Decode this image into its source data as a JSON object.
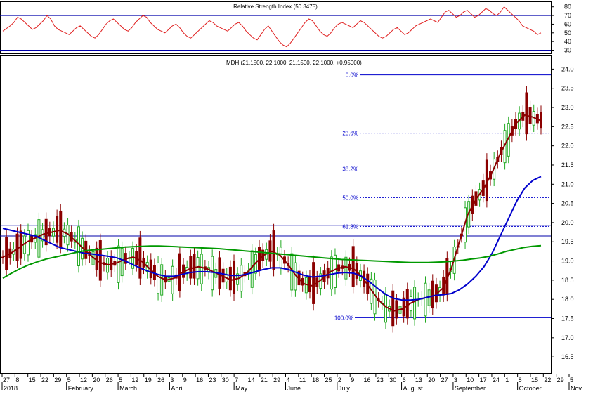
{
  "chart_data": [
    {
      "type": "line",
      "title": "Relative Strength Index (50.3475)",
      "y_ticks": [
        "80",
        "70",
        "60",
        "50",
        "40",
        "30"
      ],
      "ylim": [
        28,
        83
      ],
      "guide_levels": [
        70,
        30
      ],
      "series": [
        {
          "color": "#e02020",
          "values": [
            52,
            55,
            58,
            62,
            68,
            66,
            62,
            58,
            54,
            56,
            60,
            64,
            70,
            66,
            58,
            54,
            52,
            50,
            48,
            52,
            56,
            58,
            54,
            50,
            46,
            44,
            48,
            54,
            60,
            64,
            66,
            62,
            58,
            54,
            52,
            56,
            62,
            66,
            70,
            68,
            62,
            58,
            54,
            52,
            50,
            54,
            58,
            60,
            56,
            50,
            46,
            44,
            48,
            52,
            56,
            60,
            64,
            62,
            58,
            56,
            54,
            52,
            56,
            60,
            62,
            58,
            52,
            48,
            44,
            42,
            48,
            54,
            58,
            52,
            46,
            40,
            36,
            34,
            38,
            44,
            50,
            56,
            62,
            66,
            64,
            58,
            52,
            48,
            46,
            50,
            56,
            60,
            62,
            60,
            58,
            56,
            60,
            64,
            62,
            58,
            54,
            50,
            46,
            44,
            46,
            50,
            54,
            56,
            52,
            48,
            50,
            54,
            58,
            60,
            62,
            64,
            66,
            64,
            62,
            68,
            74,
            76,
            72,
            68,
            70,
            74,
            76,
            72,
            68,
            70,
            74,
            78,
            76,
            72,
            70,
            74,
            80,
            76,
            72,
            68,
            64,
            58,
            56,
            54,
            52,
            48,
            50
          ]
        }
      ]
    },
    {
      "type": "line",
      "title": "MDH (21.1500, 22.1000, 21.1500, 22.1000, +0.95000)",
      "ylim": [
        16.1,
        24.3
      ],
      "y_ticks": [
        24.0,
        23.5,
        23.0,
        22.5,
        22.0,
        21.5,
        21.0,
        20.5,
        20.0,
        19.5,
        19.0,
        18.5,
        18.0,
        17.5,
        17.0,
        16.5
      ],
      "x_ticks": [
        "27",
        "8",
        "15",
        "22",
        "29",
        "5",
        "12",
        "20",
        "26",
        "5",
        "12",
        "19",
        "26",
        "3",
        "9",
        "16",
        "23",
        "30",
        "7",
        "14",
        "21",
        "29",
        "4",
        "11",
        "18",
        "25",
        "2",
        "9",
        "16",
        "23",
        "30",
        "6",
        "13",
        "20",
        "27",
        "3",
        "10",
        "17",
        "24",
        "1",
        "8",
        "15",
        "22",
        "29",
        "5"
      ],
      "month_labels": [
        "2018",
        "February",
        "March",
        "April",
        "May",
        "June",
        "July",
        "August",
        "September",
        "October",
        "Nov"
      ],
      "fib_levels": [
        {
          "label": "0.0%",
          "value": 23.85
        },
        {
          "label": "23.6%",
          "value": 22.33
        },
        {
          "label": "38.2%",
          "value": 21.4
        },
        {
          "label": "50.0%",
          "value": 20.65
        },
        {
          "label": "61.8%",
          "value": 19.9
        },
        {
          "label": "100.0%",
          "value": 17.52
        }
      ],
      "horizontal_lines": [
        19.93,
        19.65
      ],
      "series": [
        {
          "name": "",
          "color": "#8b0000",
          "values": [
            19.1,
            19.2,
            19.35,
            19.5,
            19.6,
            19.7,
            19.75,
            19.8,
            19.7,
            19.5,
            19.3,
            19.1,
            18.95,
            18.9,
            18.95,
            19.05,
            19.1,
            19.0,
            18.8,
            18.6,
            18.5,
            18.55,
            18.7,
            18.8,
            18.85,
            18.8,
            18.7,
            18.6,
            18.5,
            18.55,
            18.7,
            18.95,
            19.15,
            19.25,
            19.15,
            18.9,
            18.6,
            18.4,
            18.35,
            18.5,
            18.7,
            18.8,
            18.85,
            18.8,
            18.6,
            18.3,
            18.0,
            17.8,
            17.7,
            17.75,
            17.9,
            18.0,
            18.05,
            18.1,
            18.3,
            18.8,
            19.5,
            20.2,
            20.6,
            20.9,
            21.3,
            21.8,
            22.2,
            22.6,
            22.8,
            22.75,
            22.65
          ]
        },
        {
          "name": "",
          "color": "#0000cc",
          "values": [
            19.85,
            19.8,
            19.75,
            19.7,
            19.65,
            19.55,
            19.45,
            19.35,
            19.3,
            19.25,
            19.2,
            19.18,
            19.15,
            19.12,
            19.08,
            19.0,
            18.9,
            18.8,
            18.72,
            18.65,
            18.6,
            18.6,
            18.65,
            18.7,
            18.72,
            18.72,
            18.7,
            18.66,
            18.62,
            18.62,
            18.66,
            18.72,
            18.78,
            18.82,
            18.82,
            18.78,
            18.7,
            18.62,
            18.58,
            18.6,
            18.64,
            18.68,
            18.7,
            18.68,
            18.6,
            18.45,
            18.28,
            18.12,
            18.02,
            17.98,
            17.98,
            18.0,
            18.05,
            18.1,
            18.12,
            18.15,
            18.25,
            18.4,
            18.6,
            18.85,
            19.2,
            19.65,
            20.1,
            20.55,
            20.9,
            21.1,
            21.2
          ]
        },
        {
          "name": "",
          "color": "#009900",
          "values": [
            18.55,
            18.68,
            18.8,
            18.9,
            18.98,
            19.05,
            19.1,
            19.15,
            19.2,
            19.25,
            19.28,
            19.3,
            19.32,
            19.34,
            19.36,
            19.37,
            19.38,
            19.39,
            19.39,
            19.38,
            19.37,
            19.36,
            19.35,
            19.34,
            19.33,
            19.32,
            19.3,
            19.28,
            19.26,
            19.24,
            19.22,
            19.2,
            19.18,
            19.16,
            19.14,
            19.12,
            19.1,
            19.08,
            19.06,
            19.04,
            19.03,
            19.02,
            19.01,
            19.0,
            18.99,
            18.98,
            18.97,
            18.96,
            18.96,
            18.96,
            18.97,
            18.98,
            19.0,
            19.02,
            19.05,
            19.08,
            19.12,
            19.18,
            19.25,
            19.3,
            19.35,
            19.38,
            19.4
          ]
        }
      ]
    }
  ]
}
